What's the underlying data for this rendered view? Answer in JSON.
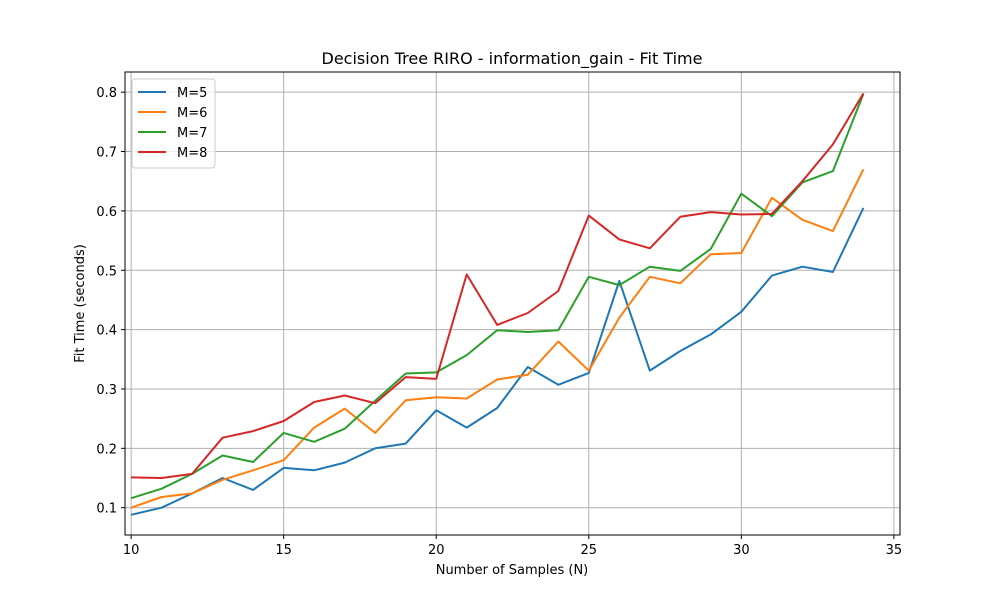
{
  "chart_data": {
    "type": "line",
    "title": "Decision Tree RIRO - information_gain - Fit Time",
    "xlabel": "Number of Samples (N)",
    "ylabel": "Fit Time (seconds)",
    "xlim": [
      9.8,
      35.2
    ],
    "ylim": [
      0.054,
      0.834
    ],
    "xticks": [
      10,
      15,
      20,
      25,
      30,
      35
    ],
    "yticks": [
      0.1,
      0.2,
      0.3,
      0.4,
      0.5,
      0.6,
      0.7,
      0.8
    ],
    "xtick_labels": [
      "10",
      "15",
      "20",
      "25",
      "30",
      "35"
    ],
    "ytick_labels": [
      "0.1",
      "0.2",
      "0.3",
      "0.4",
      "0.5",
      "0.6",
      "0.7",
      "0.8"
    ],
    "grid": true,
    "legend_position": "top-left",
    "x": [
      10,
      11,
      12,
      13,
      14,
      15,
      16,
      17,
      18,
      19,
      20,
      21,
      22,
      23,
      24,
      25,
      26,
      27,
      28,
      29,
      30,
      31,
      32,
      33,
      34
    ],
    "series": [
      {
        "name": "M=5",
        "color": "#1f77b4",
        "values": [
          0.088,
          0.1,
          0.124,
          0.15,
          0.13,
          0.167,
          0.163,
          0.176,
          0.2,
          0.208,
          0.264,
          0.235,
          0.268,
          0.337,
          0.307,
          0.327,
          0.482,
          0.331,
          0.364,
          0.392,
          0.43,
          0.491,
          0.506,
          0.497,
          0.605
        ]
      },
      {
        "name": "M=6",
        "color": "#ff7f0e",
        "values": [
          0.1,
          0.118,
          0.124,
          0.147,
          0.163,
          0.18,
          0.235,
          0.267,
          0.226,
          0.281,
          0.286,
          0.284,
          0.316,
          0.324,
          0.38,
          0.331,
          0.42,
          0.489,
          0.478,
          0.527,
          0.529,
          0.622,
          0.585,
          0.566,
          0.67
        ]
      },
      {
        "name": "M=7",
        "color": "#2ca02c",
        "values": [
          0.116,
          0.132,
          0.157,
          0.188,
          0.177,
          0.226,
          0.211,
          0.233,
          0.28,
          0.326,
          0.328,
          0.357,
          0.399,
          0.396,
          0.399,
          0.489,
          0.475,
          0.506,
          0.499,
          0.536,
          0.629,
          0.591,
          0.648,
          0.667,
          0.797
        ]
      },
      {
        "name": "M=8",
        "color": "#d62728",
        "values": [
          0.151,
          0.15,
          0.157,
          0.218,
          0.229,
          0.246,
          0.278,
          0.289,
          0.276,
          0.32,
          0.317,
          0.493,
          0.408,
          0.428,
          0.465,
          0.592,
          0.552,
          0.537,
          0.59,
          0.598,
          0.594,
          0.595,
          0.65,
          0.712,
          0.798
        ]
      }
    ]
  }
}
